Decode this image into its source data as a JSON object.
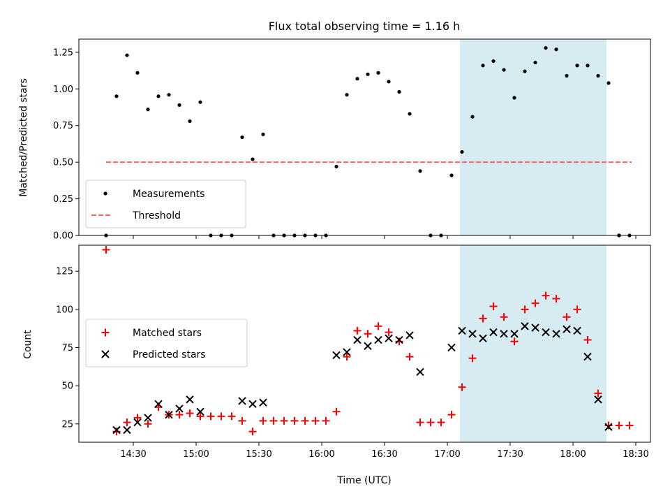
{
  "chart_data": {
    "type": "scatter",
    "title": "Flux total observing time = 1.16 h",
    "xlabel": "Time (UTC)",
    "x_unit": "minutes of day (UTC)",
    "xlim": [
      844,
      1117
    ],
    "xticks": [
      870,
      900,
      930,
      960,
      990,
      1020,
      1050,
      1080,
      1110
    ],
    "xtick_labels": [
      "14:30",
      "15:00",
      "15:30",
      "16:00",
      "16:30",
      "17:00",
      "17:30",
      "18:00",
      "18:30"
    ],
    "highlight_span": {
      "x0": 1026,
      "x1": 1096,
      "color": "#add8e6"
    },
    "colors": {
      "measurements": "#000000",
      "threshold": "#ff6464",
      "matched": "#ff0000",
      "predicted": "#000000",
      "span": "#add8e6"
    },
    "top": {
      "ylabel": "Matched/Predicted stars",
      "ylim": [
        0,
        1.34
      ],
      "yticks": [
        0.0,
        0.25,
        0.5,
        0.75,
        1.0,
        1.25
      ],
      "ytick_labels": [
        "0.00",
        "0.25",
        "0.50",
        "0.75",
        "1.00",
        "1.25"
      ],
      "legend": [
        "Measurements",
        "Threshold"
      ],
      "threshold": {
        "value": 0.5,
        "x_range": [
          857,
          1108
        ]
      },
      "measurements": {
        "x": [
          857,
          862,
          867,
          872,
          877,
          882,
          887,
          892,
          897,
          902,
          907,
          912,
          917,
          922,
          927,
          932,
          937,
          942,
          947,
          952,
          957,
          962,
          967,
          972,
          977,
          982,
          987,
          992,
          997,
          1002,
          1007,
          1012,
          1017,
          1022,
          1027,
          1032,
          1037,
          1042,
          1047,
          1052,
          1057,
          1062,
          1067,
          1072,
          1077,
          1082,
          1087,
          1092,
          1097,
          1102
        ],
        "y": [
          0.0,
          0.95,
          1.23,
          1.11,
          0.86,
          0.95,
          0.96,
          0.89,
          0.78,
          0.91,
          0.0,
          0.0,
          0.0,
          0.67,
          0.52,
          0.69,
          0.0,
          0.0,
          0.0,
          0.0,
          0.0,
          0.0,
          0.47,
          0.96,
          1.07,
          1.1,
          1.11,
          1.05,
          0.98,
          0.83,
          0.44,
          0.0,
          0.0,
          0.41,
          0.57,
          0.81,
          1.16,
          1.19,
          1.13,
          0.94,
          1.12,
          1.18,
          1.28,
          1.27,
          1.09,
          1.16,
          1.16,
          1.09,
          1.04,
          0.0
        ]
      },
      "extra_points": {
        "x": [
          1102,
          1107
        ],
        "y": [
          0.0,
          0.0
        ]
      }
    },
    "bottom": {
      "ylabel": "Count",
      "ylim": [
        13,
        142
      ],
      "yticks": [
        25,
        50,
        75,
        100,
        125
      ],
      "ytick_labels": [
        "25",
        "50",
        "75",
        "100",
        "125"
      ],
      "legend": [
        "Matched stars",
        "Predicted stars"
      ],
      "matched": {
        "x": [
          857,
          862,
          867,
          872,
          877,
          882,
          887,
          892,
          897,
          902,
          907,
          912,
          917,
          922,
          927,
          932,
          937,
          942,
          947,
          952,
          957,
          962,
          967,
          972,
          977,
          982,
          987,
          992,
          997,
          1002,
          1007,
          1012,
          1017,
          1022,
          1027,
          1032,
          1037,
          1042,
          1047,
          1052,
          1057,
          1062,
          1067,
          1072,
          1077,
          1082,
          1087,
          1092,
          1097,
          1102,
          1107
        ],
        "y": [
          139,
          20,
          26,
          29,
          25,
          36,
          31,
          31,
          32,
          30,
          30,
          30,
          30,
          27,
          20,
          27,
          27,
          27,
          27,
          27,
          27,
          27,
          33,
          69,
          86,
          84,
          89,
          85,
          79,
          69,
          26,
          26,
          26,
          31,
          49,
          68,
          94,
          102,
          95,
          79,
          100,
          104,
          109,
          107,
          95,
          100,
          80,
          45,
          24,
          24,
          24
        ]
      },
      "predicted": {
        "x": [
          862,
          867,
          872,
          877,
          882,
          887,
          892,
          897,
          902,
          922,
          927,
          932,
          967,
          972,
          977,
          982,
          987,
          992,
          997,
          1002,
          1007,
          1022,
          1027,
          1032,
          1037,
          1042,
          1047,
          1052,
          1057,
          1062,
          1067,
          1072,
          1077,
          1082,
          1087,
          1092,
          1097
        ],
        "y": [
          21,
          21,
          26,
          29,
          38,
          31,
          35,
          41,
          33,
          40,
          38,
          39,
          70,
          72,
          80,
          76,
          80,
          81,
          80,
          83,
          59,
          75,
          86,
          84,
          81,
          85,
          84,
          84,
          89,
          88,
          85,
          84,
          87,
          86,
          69,
          41,
          23
        ]
      }
    }
  }
}
